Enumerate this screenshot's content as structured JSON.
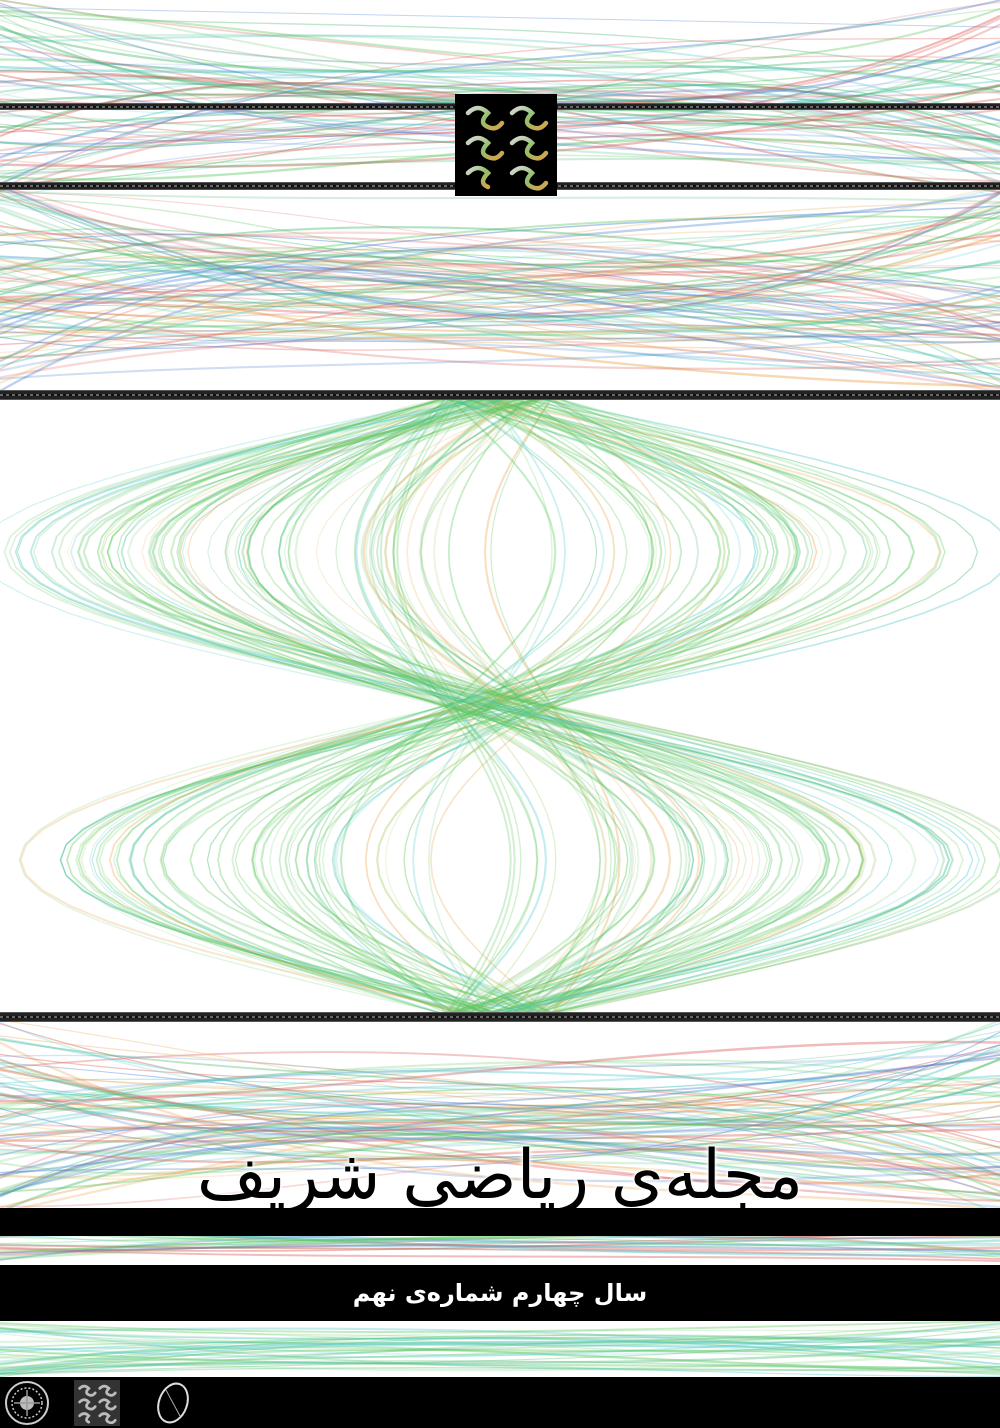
{
  "cover": {
    "title": "مجله‌ی ریاضی شریف",
    "subtitle": "سال چهارم شماره‌ی نهم"
  },
  "icons": {
    "header_logo": "journal-monogram-icon",
    "footer_seal": "university-seal-icon",
    "footer_logo": "journal-monogram-icon",
    "footer_emblem": "oval-emblem-icon"
  },
  "colors": {
    "background": "#ffffff",
    "band": "#000000",
    "strands": [
      "#d9534f",
      "#e8a34a",
      "#5cc85c",
      "#3fb56b",
      "#4fc8c8",
      "#4a7fd0",
      "#a0c85a"
    ]
  }
}
